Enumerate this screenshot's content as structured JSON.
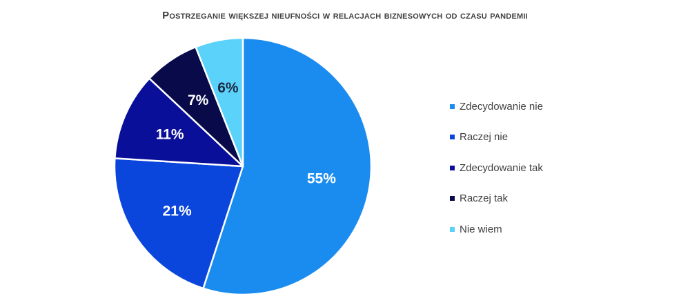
{
  "chart_data": {
    "type": "pie",
    "title": "Postrzeganie większej nieufności w relacjach biznesowych od czasu pandemii",
    "legend_position": "right",
    "slices": [
      {
        "label": "Zdecydowanie nie",
        "value": 55,
        "display": "55%",
        "color": "#1a8cf0",
        "text_color": "#ffffff"
      },
      {
        "label": "Raczej nie",
        "value": 21,
        "display": "21%",
        "color": "#0b46dc",
        "text_color": "#ffffff"
      },
      {
        "label": "Zdecydowanie tak",
        "value": 11,
        "display": "11%",
        "color": "#0a0f9a",
        "text_color": "#ffffff"
      },
      {
        "label": "Raczej tak",
        "value": 7,
        "display": "7%",
        "color": "#080a4a",
        "text_color": "#ffffff"
      },
      {
        "label": "Nie wiem",
        "value": 6,
        "display": "6%",
        "color": "#5ad2fa",
        "text_color": "#1f2a44"
      }
    ]
  }
}
